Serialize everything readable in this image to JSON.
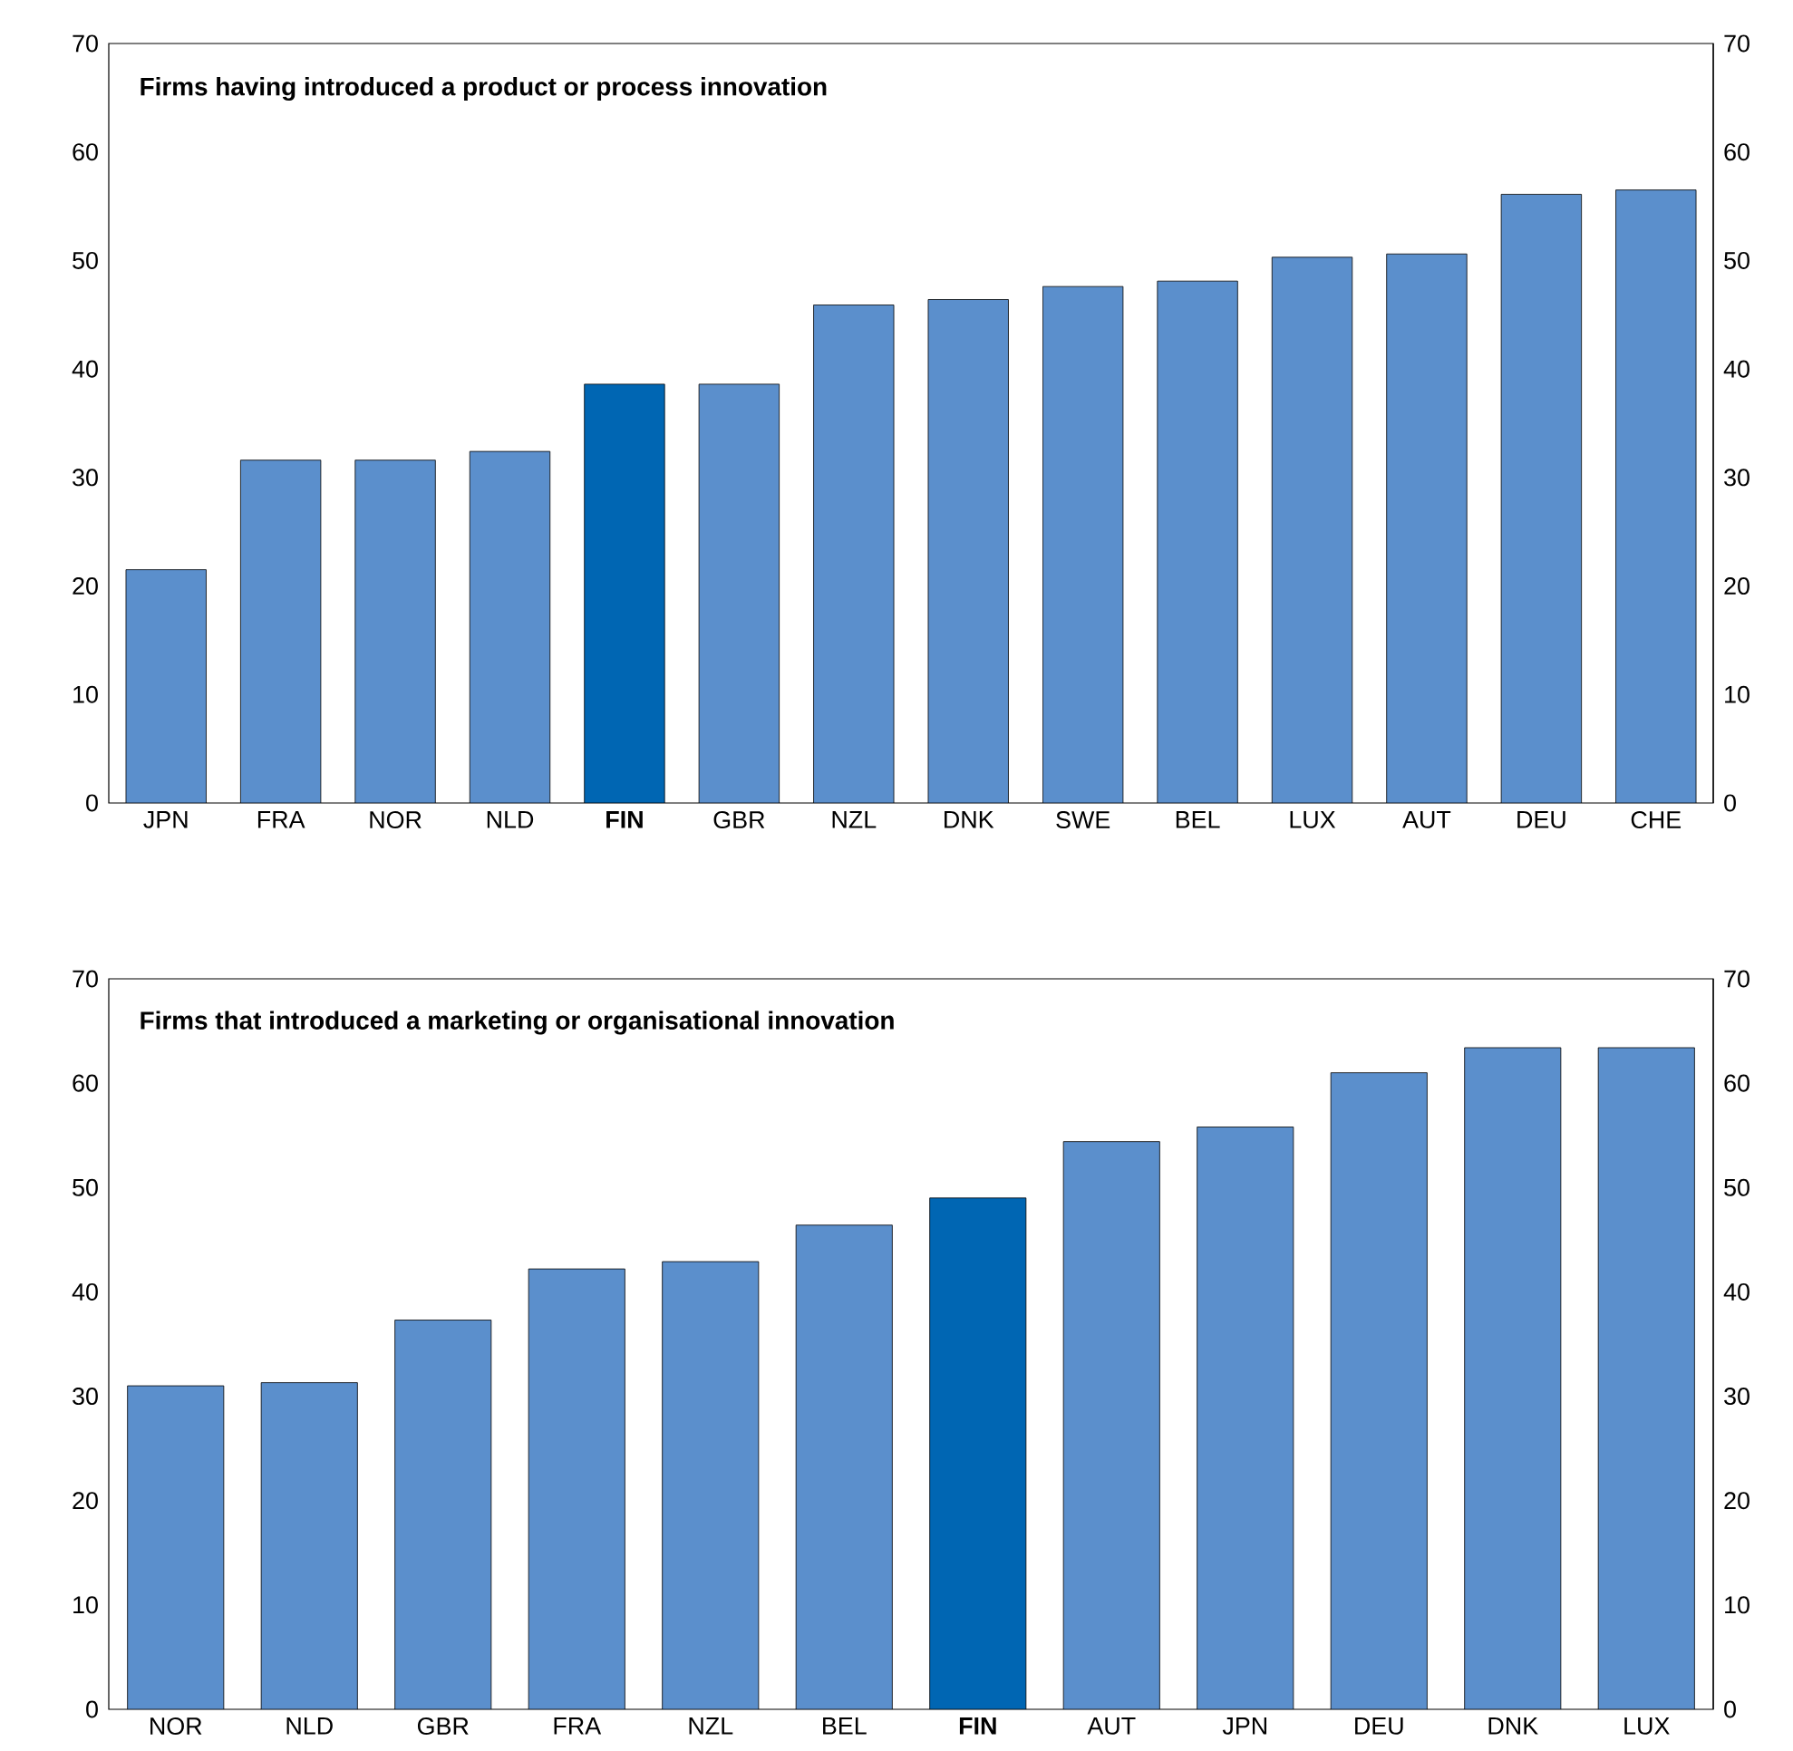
{
  "chart_data": [
    {
      "type": "bar",
      "title": "Firms having introduced a product or process innovation",
      "categories": [
        "JPN",
        "FRA",
        "NOR",
        "NLD",
        "FIN",
        "GBR",
        "NZL",
        "DNK",
        "SWE",
        "BEL",
        "LUX",
        "AUT",
        "DEU",
        "CHE"
      ],
      "values": [
        21.5,
        31.6,
        31.6,
        32.4,
        38.6,
        38.6,
        45.9,
        46.4,
        47.6,
        48.1,
        50.3,
        50.6,
        56.1,
        56.5
      ],
      "colors": [
        "#5b8fcc",
        "#5b8fcc",
        "#5b8fcc",
        "#5b8fcc",
        "#0066b3",
        "#5b8fcc",
        "#5b8fcc",
        "#5b8fcc",
        "#5b8fcc",
        "#5b8fcc",
        "#5b8fcc",
        "#5b8fcc",
        "#5b8fcc",
        "#5b8fcc"
      ],
      "ylim": [
        0,
        70
      ],
      "yticks": [
        0,
        10,
        20,
        30,
        40,
        50,
        60,
        70
      ],
      "y2lim": [
        0,
        70
      ],
      "y2ticks": [
        0,
        10,
        20,
        30,
        40,
        50,
        60,
        70
      ]
    },
    {
      "type": "bar",
      "title": "Firms that introduced a marketing or organisational innovation",
      "categories": [
        "NOR",
        "NLD",
        "GBR",
        "FRA",
        "NZL",
        "BEL",
        "FIN",
        "AUT",
        "JPN",
        "DEU",
        "DNK",
        "LUX"
      ],
      "values": [
        31,
        31.3,
        37.3,
        42.2,
        42.9,
        46.4,
        49,
        54.4,
        55.8,
        61,
        63.4,
        63.4
      ],
      "colors": [
        "#5b8fcc",
        "#5b8fcc",
        "#5b8fcc",
        "#5b8fcc",
        "#5b8fcc",
        "#5b8fcc",
        "#0066b3",
        "#5b8fcc",
        "#5b8fcc",
        "#5b8fcc",
        "#5b8fcc",
        "#5b8fcc"
      ],
      "ylim": [
        0,
        70
      ],
      "yticks": [
        0,
        10,
        20,
        30,
        40,
        50,
        60,
        70
      ],
      "y2lim": [
        0,
        70
      ],
      "y2ticks": [
        0,
        10,
        20,
        30,
        40,
        50,
        60,
        70
      ]
    }
  ]
}
